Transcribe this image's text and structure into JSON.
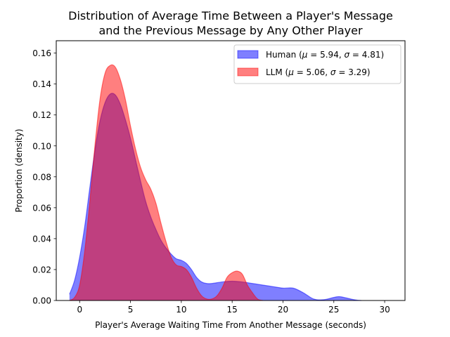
{
  "chart_data": {
    "type": "area",
    "title_line1": "Distribution of Average Time Between a Player's Message",
    "title_line2": "and the Previous Message by Any Other Player",
    "xlabel": "Player's Average Waiting Time From Another Message (seconds)",
    "ylabel": "Proportion (density)",
    "xlim": [
      -2.3,
      32.0
    ],
    "ylim": [
      0,
      0.168
    ],
    "x_ticks": [
      0,
      5,
      10,
      15,
      20,
      25,
      30
    ],
    "x_tick_labels": [
      "0",
      "5",
      "10",
      "15",
      "20",
      "25",
      "30"
    ],
    "y_ticks": [
      0,
      0.02,
      0.04,
      0.06,
      0.08,
      0.1,
      0.12,
      0.14,
      0.16
    ],
    "y_tick_labels": [
      "0.00",
      "0.02",
      "0.04",
      "0.06",
      "0.08",
      "0.10",
      "0.12",
      "0.14",
      "0.16"
    ],
    "legend_position": "top-right",
    "series": [
      {
        "name": "Human ($\\mu=5.94,\\sigma=4.81$)",
        "legend_prefix": "Human (",
        "legend_mu": "μ",
        "legend_mu_value": " = 5.94, ",
        "legend_sigma": "σ",
        "legend_sigma_value": " = 4.81)",
        "color": "#0000ff",
        "x": [
          -1.0,
          -0.5,
          0.0,
          0.5,
          1.0,
          1.5,
          2.0,
          2.5,
          3.0,
          3.5,
          4.0,
          4.5,
          5.0,
          5.5,
          6.0,
          6.5,
          7.0,
          7.5,
          8.0,
          8.5,
          9.0,
          9.5,
          10.0,
          10.5,
          11.0,
          11.5,
          12.0,
          12.5,
          13.0,
          14.0,
          15.0,
          16.0,
          17.0,
          18.0,
          19.0,
          20.0,
          21.0,
          22.0,
          23.0,
          24.0,
          25.0,
          25.5,
          26.0,
          27.0,
          27.7
        ],
        "y": [
          0.004,
          0.013,
          0.028,
          0.048,
          0.073,
          0.097,
          0.116,
          0.128,
          0.1335,
          0.133,
          0.127,
          0.117,
          0.105,
          0.091,
          0.077,
          0.064,
          0.054,
          0.046,
          0.039,
          0.034,
          0.03,
          0.027,
          0.026,
          0.024,
          0.02,
          0.015,
          0.012,
          0.011,
          0.011,
          0.012,
          0.0125,
          0.012,
          0.011,
          0.01,
          0.009,
          0.008,
          0.008,
          0.005,
          0.001,
          0.0005,
          0.002,
          0.0025,
          0.002,
          0.0005,
          0.0
        ]
      },
      {
        "name": "LLM ($\\mu=5.06,\\sigma=3.29$)",
        "legend_prefix": "LLM (",
        "legend_mu": "μ",
        "legend_mu_value": " = 5.06, ",
        "legend_sigma": "σ",
        "legend_sigma_value": " = 3.29)",
        "color": "#ff0000",
        "x": [
          -1.0,
          -0.5,
          0.0,
          0.5,
          1.0,
          1.5,
          2.0,
          2.5,
          3.0,
          3.5,
          4.0,
          4.5,
          5.0,
          5.5,
          6.0,
          6.5,
          7.0,
          7.5,
          8.0,
          8.5,
          9.0,
          9.5,
          10.0,
          10.5,
          11.0,
          11.5,
          12.0,
          12.5,
          13.0,
          13.5,
          14.0,
          14.5,
          15.0,
          15.5,
          16.0,
          16.5,
          17.0,
          17.5,
          18.0
        ],
        "y": [
          0.0,
          0.002,
          0.01,
          0.032,
          0.064,
          0.1,
          0.13,
          0.147,
          0.152,
          0.151,
          0.143,
          0.13,
          0.113,
          0.098,
          0.086,
          0.078,
          0.072,
          0.063,
          0.05,
          0.038,
          0.028,
          0.023,
          0.022,
          0.02,
          0.015,
          0.008,
          0.003,
          0.001,
          0.001,
          0.003,
          0.008,
          0.015,
          0.018,
          0.019,
          0.017,
          0.01,
          0.005,
          0.001,
          0.0
        ]
      }
    ]
  }
}
